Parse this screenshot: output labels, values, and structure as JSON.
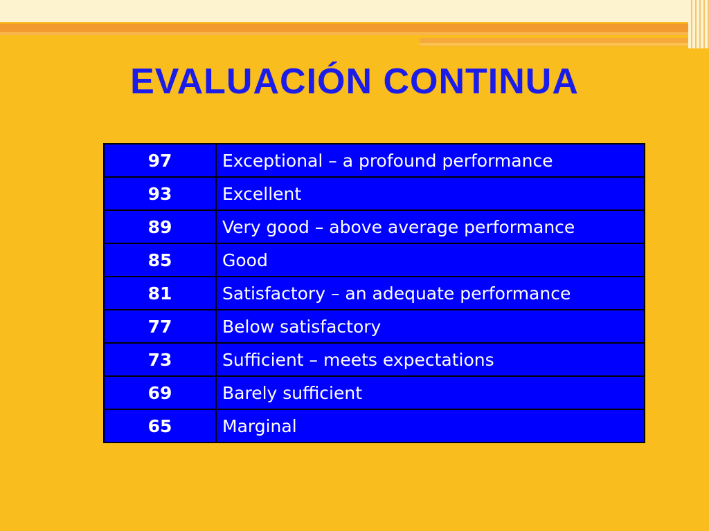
{
  "slide": {
    "title": "EVALUACIÓN CONTINUA",
    "colors": {
      "background": "#f9bd1e",
      "title": "#1c1ce8",
      "table_fill": "#0000ff",
      "table_text": "#ffffff"
    }
  },
  "grades": [
    {
      "score": "97",
      "description": "Exceptional – a profound performance"
    },
    {
      "score": "93",
      "description": "Excellent"
    },
    {
      "score": "89",
      "description": "Very good – above average performance"
    },
    {
      "score": "85",
      "description": "Good"
    },
    {
      "score": "81",
      "description": "Satisfactory – an adequate performance"
    },
    {
      "score": "77",
      "description": "Below satisfactory"
    },
    {
      "score": "73",
      "description": "Sufficient – meets expectations"
    },
    {
      "score": "69",
      "description": "Barely sufficient"
    },
    {
      "score": "65",
      "description": "Marginal"
    }
  ]
}
